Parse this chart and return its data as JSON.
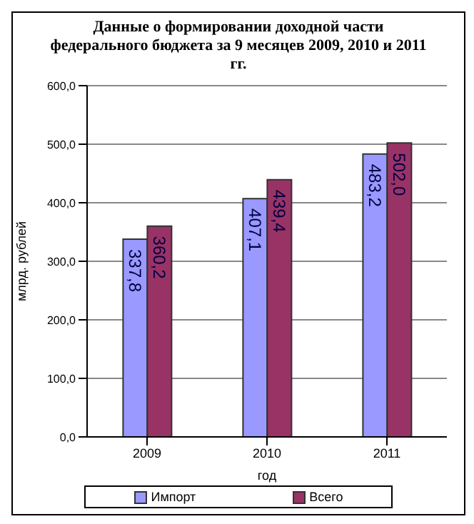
{
  "chart_data": {
    "type": "bar",
    "title": "Данные о формировании доходной части федерального бюджета за 9 месяцев 2009, 2010 и 2011 гг.",
    "xlabel": "год",
    "ylabel": "млрд. рублей",
    "categories": [
      "2009",
      "2010",
      "2011"
    ],
    "series": [
      {
        "name": "Импорт",
        "color": "#9999ff",
        "values": [
          337.8,
          407.1,
          483.2
        ],
        "value_labels": [
          "337,8",
          "407,1",
          "483,2"
        ]
      },
      {
        "name": "Всего",
        "color": "#993366",
        "values": [
          360.2,
          439.4,
          502.0
        ],
        "value_labels": [
          "360,2",
          "439,4",
          "502,0"
        ]
      }
    ],
    "ylim": [
      0,
      600
    ],
    "yticks": [
      {
        "value": 0,
        "label": "0,0"
      },
      {
        "value": 100,
        "label": "100,0"
      },
      {
        "value": 200,
        "label": "200,0"
      },
      {
        "value": 300,
        "label": "300,0"
      },
      {
        "value": 400,
        "label": "400,0"
      },
      {
        "value": 500,
        "label": "500,0"
      },
      {
        "value": 600,
        "label": "600,0"
      }
    ],
    "grid": "y",
    "legend": "bottom"
  }
}
